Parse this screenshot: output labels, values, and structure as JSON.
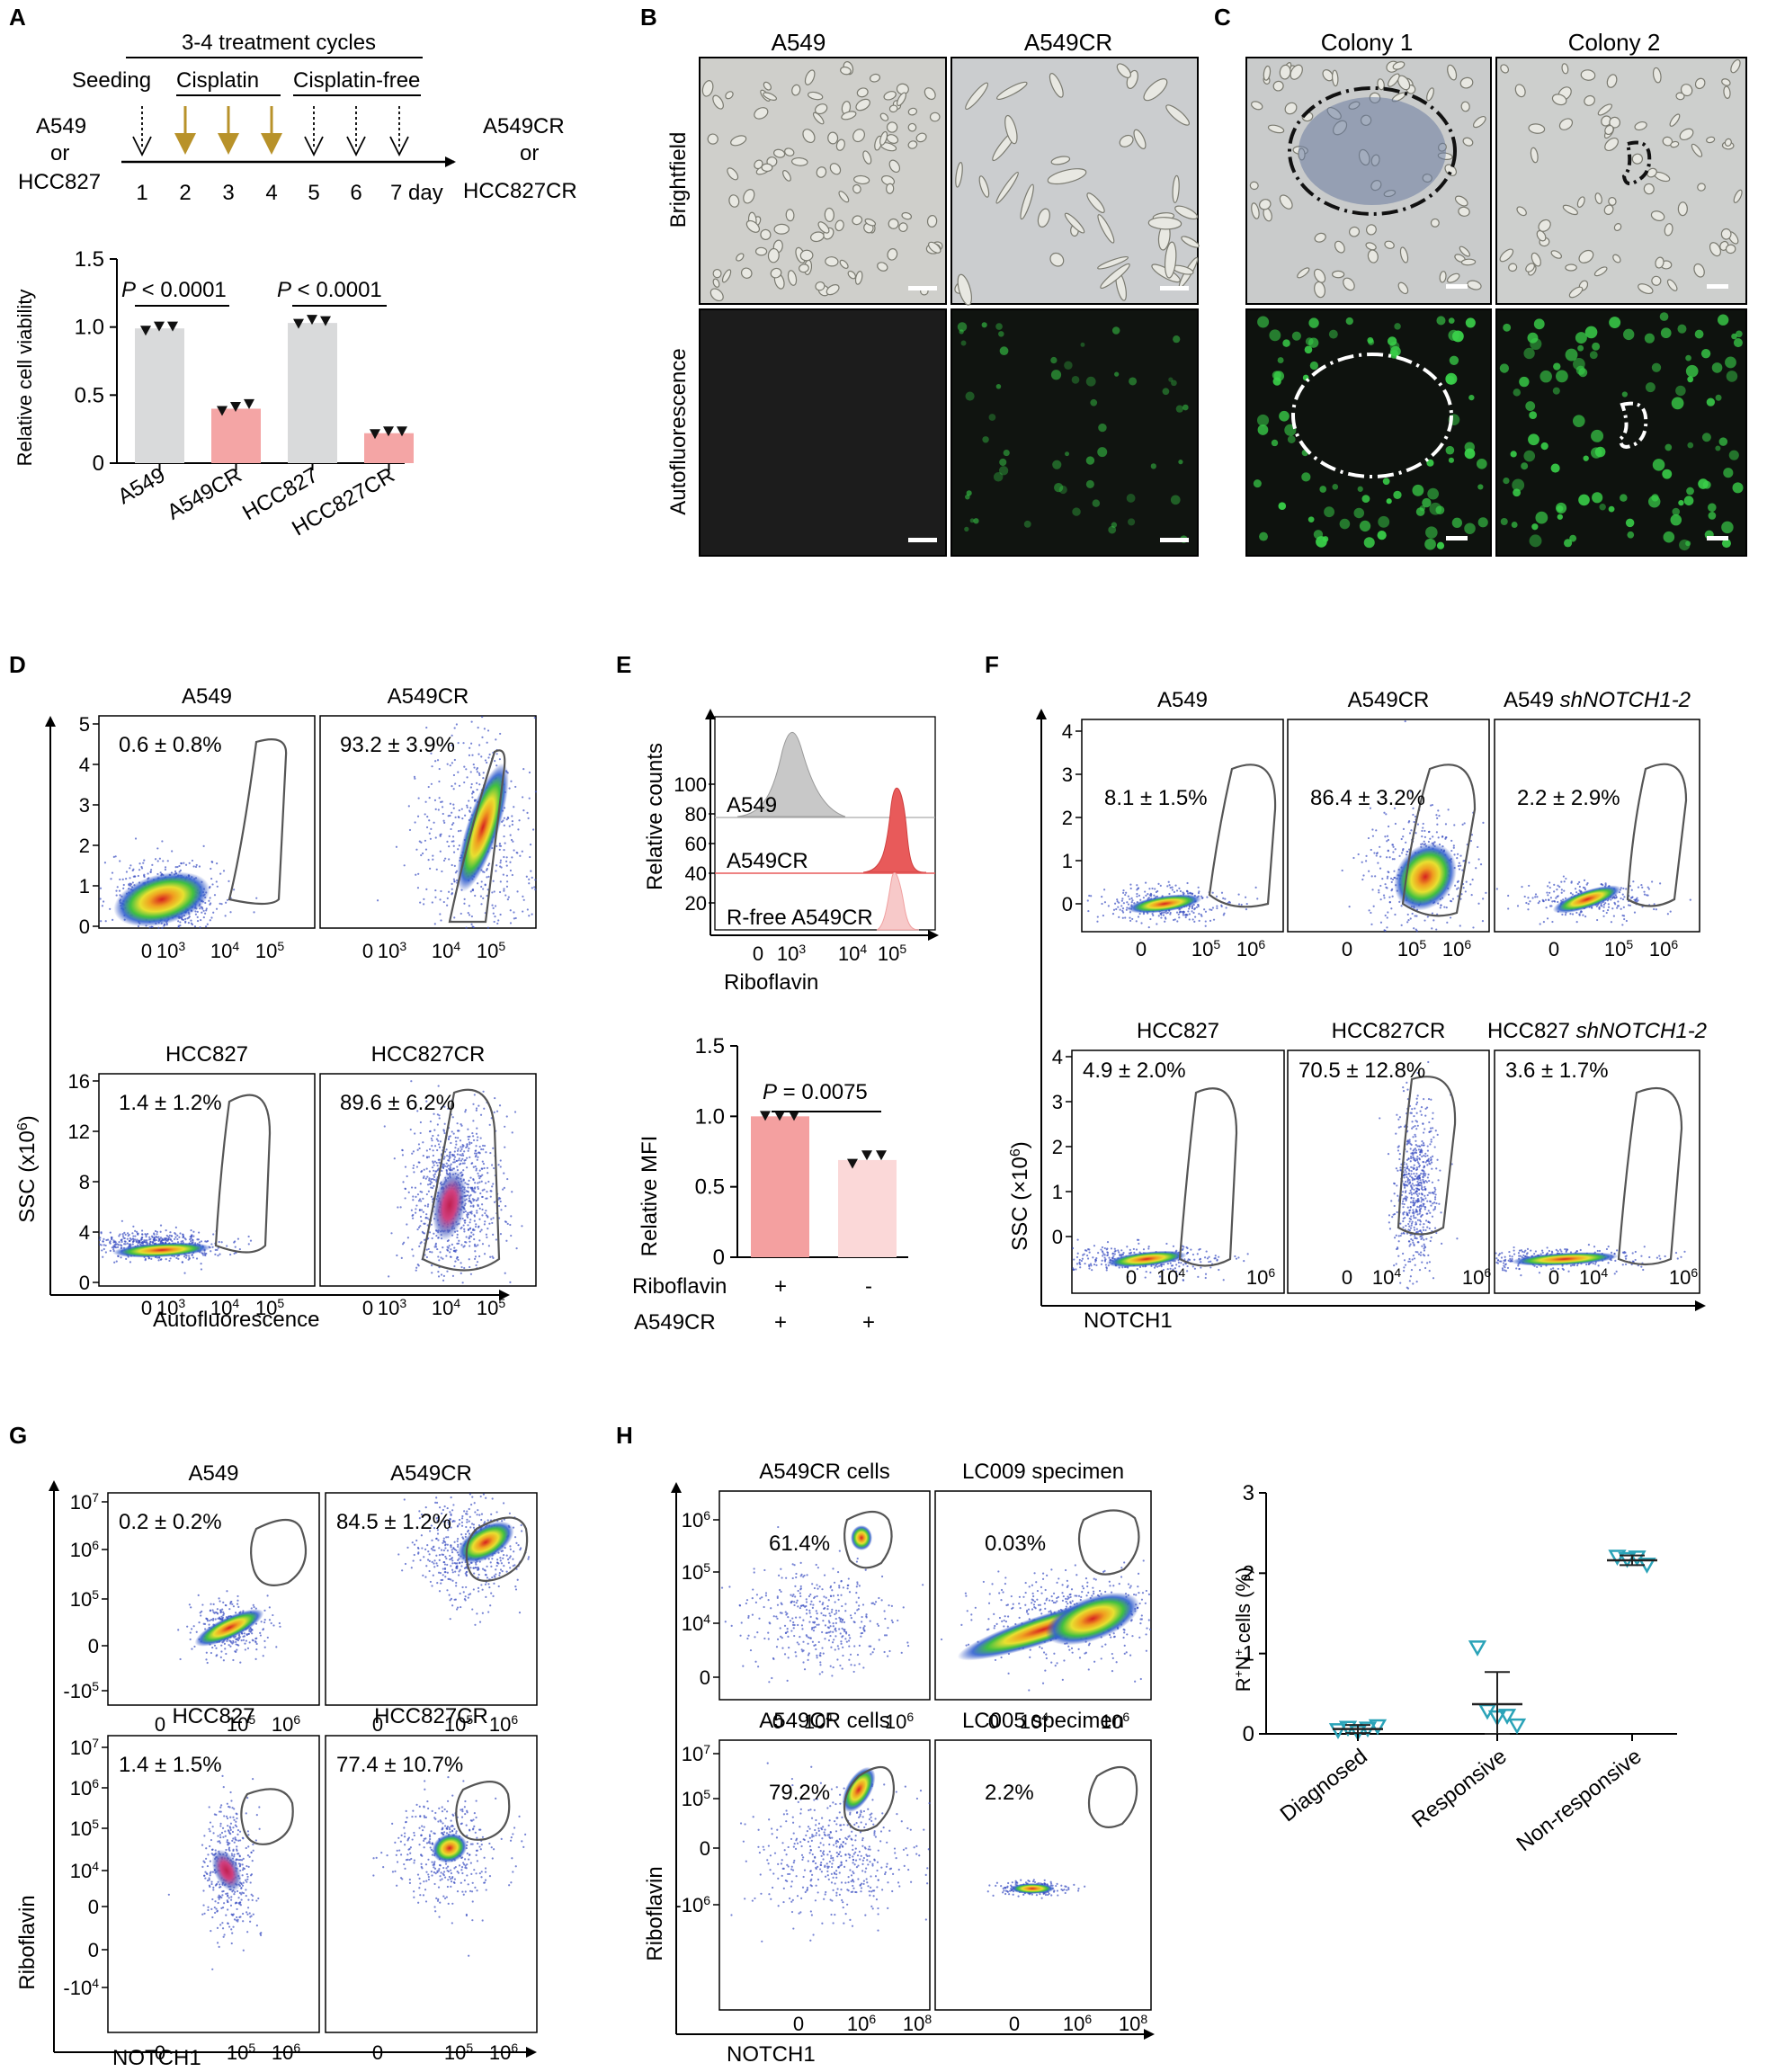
{
  "panels": {
    "A": {
      "label": "A",
      "protocol": {
        "cycles_label": "3-4 treatment cycles",
        "phase_seeding": "Seeding",
        "phase_cisplatin": "Cisplatin",
        "phase_free": "Cisplatin-free",
        "start_line1": "A549",
        "start_line2": "or",
        "start_line3": "HCC827",
        "end_line1": "A549CR",
        "end_line2": "or",
        "end_line3": "HCC827CR",
        "days": [
          "1",
          "2",
          "3",
          "4",
          "5",
          "6"
        ],
        "last_day": "7 day",
        "arrow_color": "#b8922a"
      },
      "chart_data": {
        "type": "bar",
        "categories": [
          "A549",
          "A549CR",
          "HCC827",
          "HCC827CR"
        ],
        "values": [
          0.99,
          0.4,
          1.03,
          0.22
        ],
        "points": [
          [
            0.97,
            1.0,
            1.0
          ],
          [
            0.38,
            0.41,
            0.43
          ],
          [
            1.02,
            1.05,
            1.04
          ],
          [
            0.21,
            0.23,
            0.23
          ]
        ],
        "colors": [
          "#d9dadb",
          "#f4a5a5",
          "#d9dadb",
          "#f4a5a5"
        ],
        "ylabel": "Relative cell viability",
        "ylim": [
          0,
          1.5
        ],
        "yticks": [
          "0",
          "0.5",
          "1.0",
          "1.5"
        ],
        "pvals": [
          {
            "p": "P",
            "rest": " < 0.0001"
          },
          {
            "p": "P",
            "rest": " < 0.0001"
          }
        ]
      }
    },
    "B": {
      "label": "B",
      "cols": [
        "A549",
        "A549CR"
      ],
      "rows": [
        "Brightfield",
        "Autofluorescence"
      ]
    },
    "C": {
      "label": "C",
      "cols": [
        "Colony 1",
        "Colony 2"
      ]
    },
    "D": {
      "label": "D",
      "ylabel_main": "SSC (x10",
      "ylabel_sup": "6",
      "ylabel_end": ")",
      "xlabel": "Autofluorescence",
      "plots": [
        {
          "title": "A549",
          "pct": "0.6 ± 0.8%"
        },
        {
          "title": "A549CR",
          "pct": "93.2 ± 3.9%"
        },
        {
          "title": "HCC827",
          "pct": "1.4 ± 1.2%"
        },
        {
          "title": "HCC827CR",
          "pct": "89.6 ± 6.2%"
        }
      ],
      "yticks_top": [
        "0",
        "1",
        "2",
        "3",
        "4",
        "5"
      ],
      "yticks_bottom": [
        "0",
        "4",
        "8",
        "12",
        "16"
      ]
    },
    "E": {
      "label": "E",
      "hist_ylabel": "Relative counts",
      "hist_xlabel": "Riboflavin",
      "hist_yticks": [
        "20",
        "40",
        "60",
        "80",
        "100"
      ],
      "hist_rows": [
        "A549",
        "A549CR",
        "R-free A549CR"
      ],
      "chart_data": {
        "type": "bar",
        "categories": [
          "+",
          "-"
        ],
        "values": [
          1.0,
          0.69
        ],
        "points": [
          [
            1.0,
            1.0,
            1.0
          ],
          [
            0.66,
            0.72,
            0.72
          ]
        ],
        "colors": [
          "#f4a0a0",
          "#fbd8d8"
        ],
        "ylabel": "Relative MFI",
        "ylim": [
          0,
          1.5
        ],
        "yticks": [
          "0",
          "0.5",
          "1.0",
          "1.5"
        ],
        "pval": {
          "p": "P",
          "rest": " = 0.0075"
        },
        "row1_label": "Riboflavin",
        "row1_vals": [
          "+",
          "-"
        ],
        "row2_label": "A549CR",
        "row2_vals": [
          "+",
          "+"
        ]
      }
    },
    "F": {
      "label": "F",
      "ylabel": "SSC (×10",
      "ylabel_sup": "6",
      "ylabel_end": ")",
      "xlabel": "NOTCH1",
      "plots": [
        {
          "title": "A549",
          "italic": "",
          "pct": "8.1 ± 1.5%"
        },
        {
          "title": "A549CR",
          "italic": "",
          "pct": "86.4 ± 3.2%"
        },
        {
          "title": "A549 ",
          "italic": "shNOTCH1-2",
          "pct": "2.2 ± 2.9%"
        },
        {
          "title": "HCC827",
          "italic": "",
          "pct": "4.9 ± 2.0%"
        },
        {
          "title": "HCC827CR",
          "italic": "",
          "pct": "70.5 ± 12.8%"
        },
        {
          "title": "HCC827 ",
          "italic": "shNOTCH1-2",
          "pct": "3.6 ± 1.7%"
        }
      ],
      "yticks": [
        "0",
        "1",
        "2",
        "3",
        "4"
      ]
    },
    "G": {
      "label": "G",
      "ylabel": "Riboflavin",
      "xlabel": "NOTCH1",
      "plots": [
        {
          "title": "A549",
          "pct": "0.2 ± 0.2%"
        },
        {
          "title": "A549CR",
          "pct": "84.5 ± 1.2%"
        },
        {
          "title": "HCC827",
          "pct": "1.4 ± 1.5%"
        },
        {
          "title": "HCC827CR",
          "pct": "77.4 ± 10.7%"
        }
      ]
    },
    "H": {
      "label": "H",
      "ylabel": "Riboflavin",
      "xlabel": "NOTCH1",
      "plots": [
        {
          "title": "A549CR cells",
          "pct": "61.4%"
        },
        {
          "title": "LC009 specimen",
          "pct": "0.03%"
        },
        {
          "title": "A549CR cells",
          "pct": "79.2%"
        },
        {
          "title": "LC005 specimen",
          "pct": "2.2%"
        }
      ],
      "chart_data": {
        "type": "scatter",
        "categories": [
          "Diagnosed",
          "Responsive",
          "Non-responsive"
        ],
        "points": [
          [
            0.04,
            0.07,
            0.02,
            0.06,
            0.09
          ],
          [
            1.07,
            0.28,
            0.2,
            0.22,
            0.1
          ],
          [
            2.2,
            2.17,
            2.19,
            2.1
          ]
        ],
        "means": [
          0.06,
          0.37,
          2.16
        ],
        "errs": [
          0.05,
          0.4,
          0.06
        ],
        "ylabel": "R+N+ cells (%)",
        "ylim": [
          0,
          3
        ],
        "yticks": [
          "0",
          "1",
          "2",
          "3"
        ],
        "color": "#2aa3b8"
      }
    }
  }
}
